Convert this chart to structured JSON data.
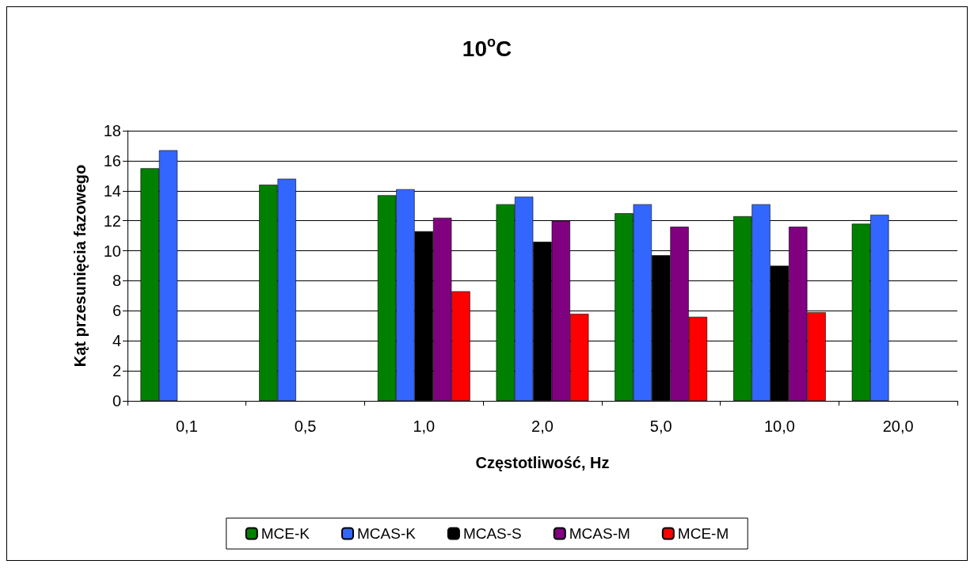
{
  "chart_data": {
    "type": "bar",
    "title": "10$^{o}$C",
    "xlabel": "Częstotliwość, Hz",
    "ylabel": "Kąt przesunięcia fazowego",
    "categories": [
      "0,1",
      "0,5",
      "1,0",
      "2,0",
      "5,0",
      "10,0",
      "20,0"
    ],
    "series": [
      {
        "name": "MCE-K",
        "color": "#008000",
        "values": [
          15.5,
          14.4,
          13.7,
          13.1,
          12.5,
          12.3,
          11.8
        ]
      },
      {
        "name": "MCAS-K",
        "color": "#3366ff",
        "values": [
          16.7,
          14.8,
          14.1,
          13.6,
          13.1,
          13.1,
          12.4
        ]
      },
      {
        "name": "MCAS-S",
        "color": "#000000",
        "values": [
          null,
          null,
          11.3,
          10.6,
          9.7,
          9.0,
          null
        ]
      },
      {
        "name": "MCAS-M",
        "color": "#800080",
        "values": [
          null,
          null,
          12.2,
          12.0,
          11.6,
          11.6,
          null
        ]
      },
      {
        "name": "MCE-M",
        "color": "#ff0000",
        "values": [
          null,
          null,
          7.3,
          5.8,
          5.6,
          5.9,
          null
        ]
      }
    ],
    "ylim": [
      0,
      18
    ],
    "yticks": [
      0,
      2,
      4,
      6,
      8,
      10,
      12,
      14,
      16,
      18
    ],
    "grid": "y",
    "legend": "bottom"
  }
}
